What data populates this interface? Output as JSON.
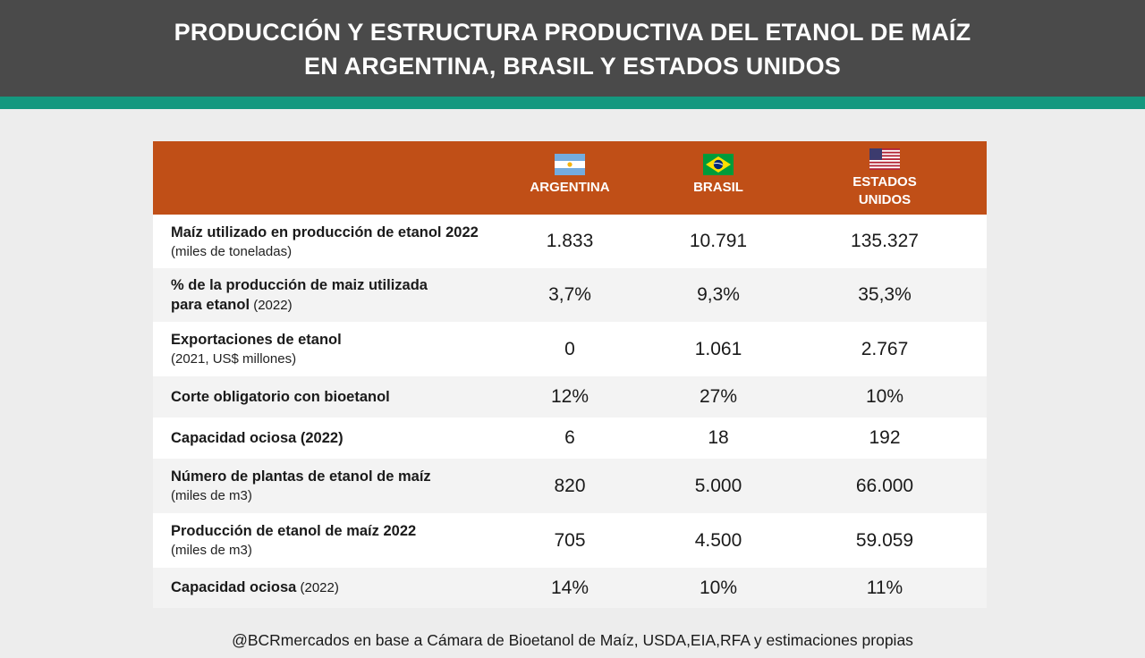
{
  "header": {
    "title_line1": "PRODUCCIÓN Y ESTRUCTURA PRODUCTIVA DEL ETANOL DE MAÍZ",
    "title_line2": "EN ARGENTINA, BRASIL Y ESTADOS UNIDOS"
  },
  "colors": {
    "header_bg": "#4a4a4a",
    "accent": "#14987f",
    "table_header": "#c04f17"
  },
  "columns": [
    {
      "name": "ARGENTINA",
      "flag": "argentina-flag-icon"
    },
    {
      "name": "BRASIL",
      "flag": "brazil-flag-icon"
    },
    {
      "name_line1": "ESTADOS",
      "name_line2": "UNIDOS",
      "flag": "usa-flag-icon"
    }
  ],
  "rows": [
    {
      "label": "Maíz utilizado en producción de etanol 2022",
      "sub": "(miles de toneladas)",
      "values": [
        "1.833",
        "10.791",
        "135.327"
      ]
    },
    {
      "label": "% de la producción de maiz utilizada",
      "label2": "para etanol",
      "label2_sub": " (2022)",
      "values": [
        "3,7%",
        "9,3%",
        "35,3%"
      ]
    },
    {
      "label": "Exportaciones de etanol",
      "sub": "(2021, US$ millones)",
      "values": [
        "0",
        "1.061",
        "2.767"
      ]
    },
    {
      "label": "Corte obligatorio con bioetanol",
      "values": [
        "12%",
        "27%",
        "10%"
      ]
    },
    {
      "label": "Capacidad ociosa (2022)",
      "values": [
        "6",
        "18",
        "192"
      ]
    },
    {
      "label": "Número de plantas de etanol de maíz",
      "sub": "(miles de m3)",
      "values": [
        "820",
        "5.000",
        "66.000"
      ]
    },
    {
      "label": "Producción de etanol de maíz 2022",
      "sub": "(miles de m3)",
      "values": [
        "705",
        "4.500",
        "59.059"
      ]
    },
    {
      "label": "Capacidad ociosa",
      "label_sub": " (2022)",
      "values": [
        "14%",
        "10%",
        "11%"
      ]
    }
  ],
  "source": "@BCRmercados en base a Cámara de Bioetanol de Maíz, USDA,EIA,RFA y estimaciones propias"
}
